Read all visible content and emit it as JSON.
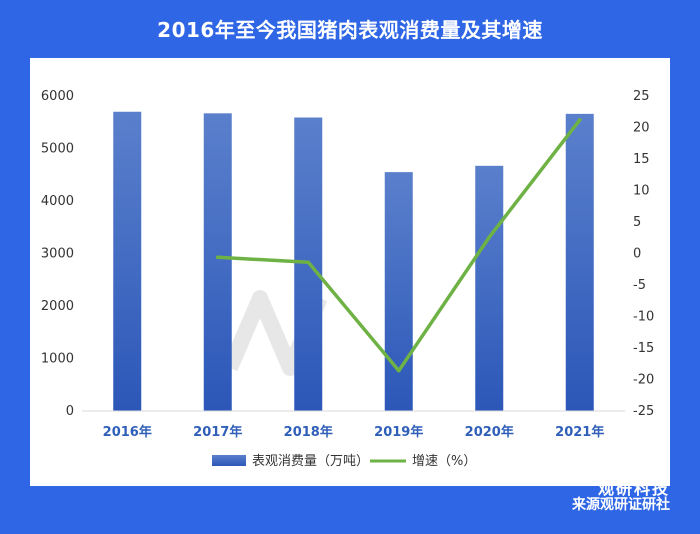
{
  "header": {
    "title": "2016年至今我国猪肉表观消费量及其增速"
  },
  "footer": {
    "brand": "观研科技",
    "source": "来源观研证研社"
  },
  "chart_data": {
    "type": "bar",
    "categories": [
      "2016年",
      "2017年",
      "2018年",
      "2019年",
      "2020年",
      "2021年"
    ],
    "series": [
      {
        "name": "表观消费量（万吨）",
        "type": "bar",
        "axis": "left",
        "values": [
          5700,
          5670,
          5590,
          4550,
          4670,
          5660
        ],
        "color": "#3f6fc4"
      },
      {
        "name": "增速（%）",
        "type": "line",
        "axis": "right",
        "values": [
          null,
          -0.6,
          -1.4,
          -18.6,
          2.6,
          21.2
        ],
        "color": "#6eb245"
      }
    ],
    "y_left": {
      "min": 0,
      "max": 6000,
      "step": 1000,
      "ticks": [
        "0",
        "1000",
        "2000",
        "3000",
        "4000",
        "5000",
        "6000"
      ]
    },
    "y_right": {
      "min": -25,
      "max": 25,
      "step": 5,
      "ticks": [
        "-25",
        "-20",
        "-15",
        "-10",
        "-5",
        "0",
        "5",
        "10",
        "15",
        "20",
        "25"
      ]
    },
    "legend_position": "bottom",
    "grid": false
  }
}
